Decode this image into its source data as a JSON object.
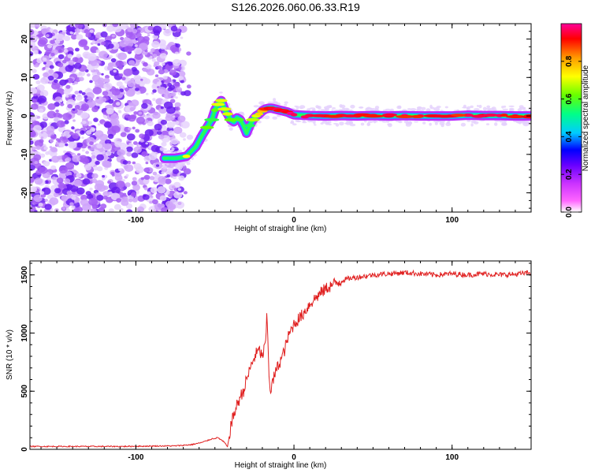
{
  "title": "S126.2026.060.06.33.R19",
  "colors": {
    "snr_line": "#e02020",
    "scatter": "#9933ff",
    "background": "#ffffff",
    "colormap": [
      "#ffffff",
      "#ff66ff",
      "#cc33ff",
      "#6600ff",
      "#0000ff",
      "#00ccff",
      "#00ff88",
      "#66ff00",
      "#ffff00",
      "#ff9900",
      "#ff0000",
      "#ff0099"
    ]
  },
  "chart_data": [
    {
      "type": "heatmap",
      "name": "spectrogram",
      "title": "S126.2026.060.06.33.R19",
      "xlabel": "Height of straight line (km)",
      "ylabel": "Frequency (Hz)",
      "xlim": [
        -167,
        150
      ],
      "ylim": [
        -25,
        24
      ],
      "xticks": [
        -100,
        0,
        100
      ],
      "yticks": [
        20,
        10,
        0,
        -10,
        -20
      ],
      "noise_region_x": [
        -167,
        -70
      ],
      "ridge": {
        "x": [
          -82,
          -75,
          -68,
          -62,
          -58,
          -55,
          -52,
          -50,
          -48,
          -46,
          -44,
          -42,
          -40,
          -38,
          -36,
          -34,
          -32,
          -30,
          -28,
          -26,
          -24,
          -22,
          -20,
          -18,
          -16,
          -14,
          -12,
          -10,
          -8,
          -6,
          -4,
          -2,
          0,
          10,
          20,
          30,
          40,
          50,
          60,
          70,
          80,
          90,
          100,
          110,
          120,
          130,
          140,
          150
        ],
        "y": [
          -11,
          -11,
          -10.5,
          -8,
          -5,
          -3,
          -1,
          1.5,
          3,
          4,
          1.8,
          0.5,
          -1,
          -1.5,
          -0.5,
          -1,
          -2.5,
          -4.5,
          -2.5,
          -1,
          0,
          0.5,
          1.3,
          1.8,
          2,
          2,
          1.8,
          1.6,
          1.4,
          1.2,
          1,
          0.6,
          0.3,
          0.1,
          0,
          0.1,
          0,
          0.1,
          0,
          0.1,
          0,
          0,
          0,
          0.2,
          0.1,
          0.1,
          0,
          0
        ],
        "amplitude": [
          0.5,
          0.6,
          0.7,
          0.5,
          0.55,
          0.6,
          0.6,
          0.65,
          0.7,
          0.7,
          0.7,
          0.7,
          0.6,
          0.55,
          0.55,
          0.6,
          0.55,
          0.55,
          0.6,
          0.65,
          0.7,
          0.75,
          0.8,
          0.85,
          0.9,
          0.9,
          0.9,
          0.95,
          0.95,
          0.95,
          0.95,
          0.95,
          0.95,
          0.95,
          0.95,
          0.95,
          0.95,
          0.95,
          0.95,
          0.95,
          0.95,
          0.95,
          0.95,
          0.95,
          0.95,
          0.95,
          0.95,
          0.95
        ]
      }
    },
    {
      "type": "colorbar",
      "name": "colorbar",
      "label": "Normalized spectral amplitude",
      "range": [
        0,
        1
      ],
      "ticks": [
        0.0,
        0.2,
        0.4,
        0.6,
        0.8
      ],
      "tick_labels": [
        "0.0",
        "0.2",
        "0.4",
        "0.6",
        "0.8"
      ]
    },
    {
      "type": "line",
      "name": "snr",
      "xlabel": "Height of straight line (km)",
      "ylabel": "SNR (10 * v/v)",
      "xlim": [
        -167,
        150
      ],
      "ylim": [
        0,
        1620
      ],
      "xticks": [
        -100,
        0,
        100
      ],
      "yticks": [
        0,
        500,
        1000,
        1500
      ],
      "series": [
        {
          "name": "SNR",
          "x": [
            -167,
            -150,
            -130,
            -110,
            -90,
            -75,
            -65,
            -58,
            -52,
            -48,
            -44,
            -42,
            -40,
            -38,
            -36,
            -34,
            -32,
            -30,
            -28,
            -26,
            -24,
            -22,
            -20,
            -18,
            -17,
            -16,
            -15,
            -14,
            -12,
            -10,
            -8,
            -6,
            -4,
            -2,
            0,
            5,
            10,
            15,
            20,
            25,
            30,
            35,
            40,
            50,
            60,
            70,
            80,
            90,
            100,
            110,
            120,
            130,
            140,
            150
          ],
          "y": [
            25,
            25,
            25,
            25,
            28,
            30,
            40,
            60,
            90,
            100,
            60,
            20,
            200,
            300,
            380,
            450,
            500,
            600,
            680,
            760,
            820,
            850,
            800,
            900,
            1170,
            700,
            500,
            550,
            650,
            720,
            780,
            850,
            950,
            1020,
            1080,
            1150,
            1250,
            1320,
            1380,
            1420,
            1450,
            1470,
            1480,
            1500,
            1510,
            1520,
            1510,
            1500,
            1510,
            1500,
            1510,
            1500,
            1505,
            1520
          ]
        }
      ]
    }
  ]
}
